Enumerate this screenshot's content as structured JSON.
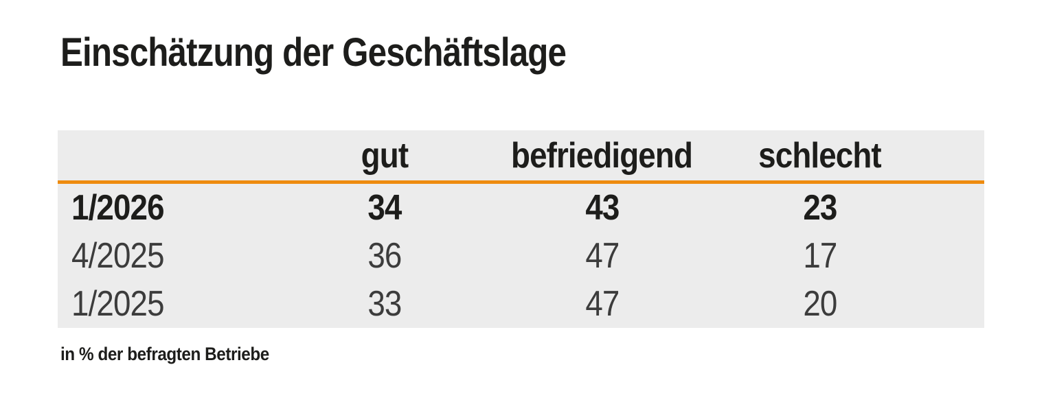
{
  "title": "Einschätzung der Geschäftslage",
  "footnote": "in % der befragten Betriebe",
  "table": {
    "columns": [
      "gut",
      "befriedigend",
      "schlecht"
    ],
    "rows": [
      {
        "period": "1/2026",
        "values": [
          "34",
          "43",
          "23"
        ],
        "emphasis": "bold"
      },
      {
        "period": "4/2025",
        "values": [
          "36",
          "47",
          "17"
        ],
        "emphasis": "normal"
      },
      {
        "period": "1/2025",
        "values": [
          "33",
          "47",
          "20"
        ],
        "emphasis": "normal"
      }
    ]
  },
  "colors": {
    "accent_orange": "#EE8B0E",
    "table_background": "#ECECEC",
    "text_dark": "#1D1D1B",
    "text_regular": "#3C3C3C",
    "page_background": "#FFFFFF"
  },
  "chart_data": {
    "type": "table",
    "title": "Einschätzung der Geschäftslage",
    "categories": [
      "gut",
      "befriedigend",
      "schlecht"
    ],
    "series": [
      {
        "name": "1/2026",
        "values": [
          34,
          43,
          23
        ]
      },
      {
        "name": "4/2025",
        "values": [
          36,
          47,
          17
        ]
      },
      {
        "name": "1/2025",
        "values": [
          33,
          47,
          20
        ]
      }
    ],
    "note": "in % der befragten Betriebe",
    "unit": "percent of surveyed businesses",
    "layout": {
      "header_rule_color": "#EE8B0E",
      "body_background": "#ECECEC",
      "highlight_row": "1/2026"
    }
  }
}
